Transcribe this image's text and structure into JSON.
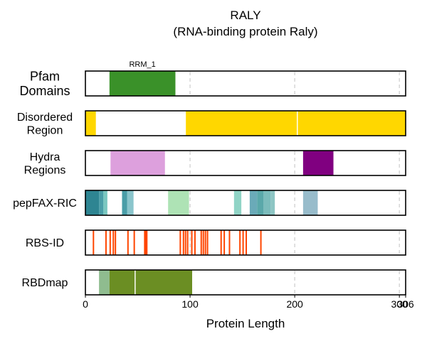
{
  "chart_data": {
    "type": "protein-feature-tracks",
    "title": "RALY",
    "subtitle": "(RNA-binding protein Raly)",
    "xlabel": "Protein Length",
    "xlim": [
      0,
      306
    ],
    "xticks": [
      {
        "value": 0,
        "label": "0"
      },
      {
        "value": 100,
        "label": "100"
      },
      {
        "value": 200,
        "label": "200"
      },
      {
        "value": 300,
        "label": "300"
      },
      {
        "value": 306,
        "label": "306"
      }
    ],
    "gridlines": [
      100,
      200,
      300
    ],
    "tracks": [
      {
        "name": "Pfam Domains",
        "label_lines": [
          "Pfam",
          "Domains"
        ],
        "label_size": 18,
        "features": [
          {
            "start": 23,
            "end": 86,
            "color": "#3a9129",
            "label": "RRM_1"
          }
        ]
      },
      {
        "name": "Disordered Region",
        "label_lines": [
          "Disordered",
          "Region"
        ],
        "label_size": 16,
        "features": [
          {
            "start": 0,
            "end": 10,
            "color": "#ffd700"
          },
          {
            "start": 96,
            "end": 202,
            "color": "#ffd700"
          },
          {
            "start": 203,
            "end": 306,
            "color": "#ffd700"
          }
        ]
      },
      {
        "name": "Hydra Regions",
        "label_lines": [
          "Hydra",
          "Regions"
        ],
        "label_size": 16,
        "features": [
          {
            "start": 24,
            "end": 76,
            "color": "#dda0dd"
          },
          {
            "start": 208,
            "end": 237,
            "color": "#800080"
          }
        ]
      },
      {
        "name": "pepFAX-RIC",
        "label_lines": [
          "pepFAX-RIC"
        ],
        "label_size": 16,
        "features": [
          {
            "start": 0,
            "end": 13,
            "color": "#2e8592"
          },
          {
            "start": 13,
            "end": 17,
            "color": "#4a9ea8"
          },
          {
            "start": 17,
            "end": 21,
            "color": "#7ac7c0"
          },
          {
            "start": 35,
            "end": 40,
            "color": "#4a9ea8"
          },
          {
            "start": 40,
            "end": 46,
            "color": "#8ac5cc"
          },
          {
            "start": 79,
            "end": 99,
            "color": "#aee3b5"
          },
          {
            "start": 142,
            "end": 149,
            "color": "#90d4c6"
          },
          {
            "start": 157,
            "end": 164,
            "color": "#6aaab8"
          },
          {
            "start": 164,
            "end": 170,
            "color": "#5aa8aa"
          },
          {
            "start": 170,
            "end": 177,
            "color": "#7cbcbc"
          },
          {
            "start": 177,
            "end": 181,
            "color": "#8ec6c4"
          },
          {
            "start": 208,
            "end": 222,
            "color": "#98bccb"
          }
        ]
      },
      {
        "name": "RBS-ID",
        "label_lines": [
          "RBS-ID"
        ],
        "label_size": 16,
        "features": [
          {
            "start": 7,
            "end": 8,
            "color": "#ff4500"
          },
          {
            "start": 19,
            "end": 20,
            "color": "#ff4500"
          },
          {
            "start": 23,
            "end": 24,
            "color": "#ff4500"
          },
          {
            "start": 26,
            "end": 27,
            "color": "#ff4500"
          },
          {
            "start": 28,
            "end": 29,
            "color": "#ff4500"
          },
          {
            "start": 40,
            "end": 41,
            "color": "#ff4500"
          },
          {
            "start": 46,
            "end": 47,
            "color": "#ff4500"
          },
          {
            "start": 56,
            "end": 57,
            "color": "#ff4500"
          },
          {
            "start": 57,
            "end": 58,
            "color": "#ff4500"
          },
          {
            "start": 58,
            "end": 59,
            "color": "#ff4500"
          },
          {
            "start": 90,
            "end": 91,
            "color": "#ff4500"
          },
          {
            "start": 93,
            "end": 94,
            "color": "#ff4500"
          },
          {
            "start": 95,
            "end": 96,
            "color": "#ff4500"
          },
          {
            "start": 97,
            "end": 98,
            "color": "#ff4500"
          },
          {
            "start": 101,
            "end": 102,
            "color": "#ff4500"
          },
          {
            "start": 104,
            "end": 105,
            "color": "#ff4500"
          },
          {
            "start": 110,
            "end": 111,
            "color": "#ff4500"
          },
          {
            "start": 112,
            "end": 113,
            "color": "#ff4500"
          },
          {
            "start": 114,
            "end": 115,
            "color": "#ff4500"
          },
          {
            "start": 116,
            "end": 117,
            "color": "#ff4500"
          },
          {
            "start": 129,
            "end": 130,
            "color": "#ff4500"
          },
          {
            "start": 132,
            "end": 133,
            "color": "#ff4500"
          },
          {
            "start": 137,
            "end": 138,
            "color": "#ff4500"
          },
          {
            "start": 147,
            "end": 148,
            "color": "#ff4500"
          },
          {
            "start": 150,
            "end": 151,
            "color": "#ff4500"
          },
          {
            "start": 153,
            "end": 154,
            "color": "#ff4500"
          },
          {
            "start": 167,
            "end": 168,
            "color": "#ff4500"
          }
        ]
      },
      {
        "name": "RBDmap",
        "label_lines": [
          "RBDmap"
        ],
        "label_size": 16,
        "features": [
          {
            "start": 13,
            "end": 23,
            "color": "#8fbc8f"
          },
          {
            "start": 23,
            "end": 47,
            "color": "#6b8e23"
          },
          {
            "start": 48,
            "end": 102,
            "color": "#6b8e23"
          }
        ]
      }
    ]
  }
}
